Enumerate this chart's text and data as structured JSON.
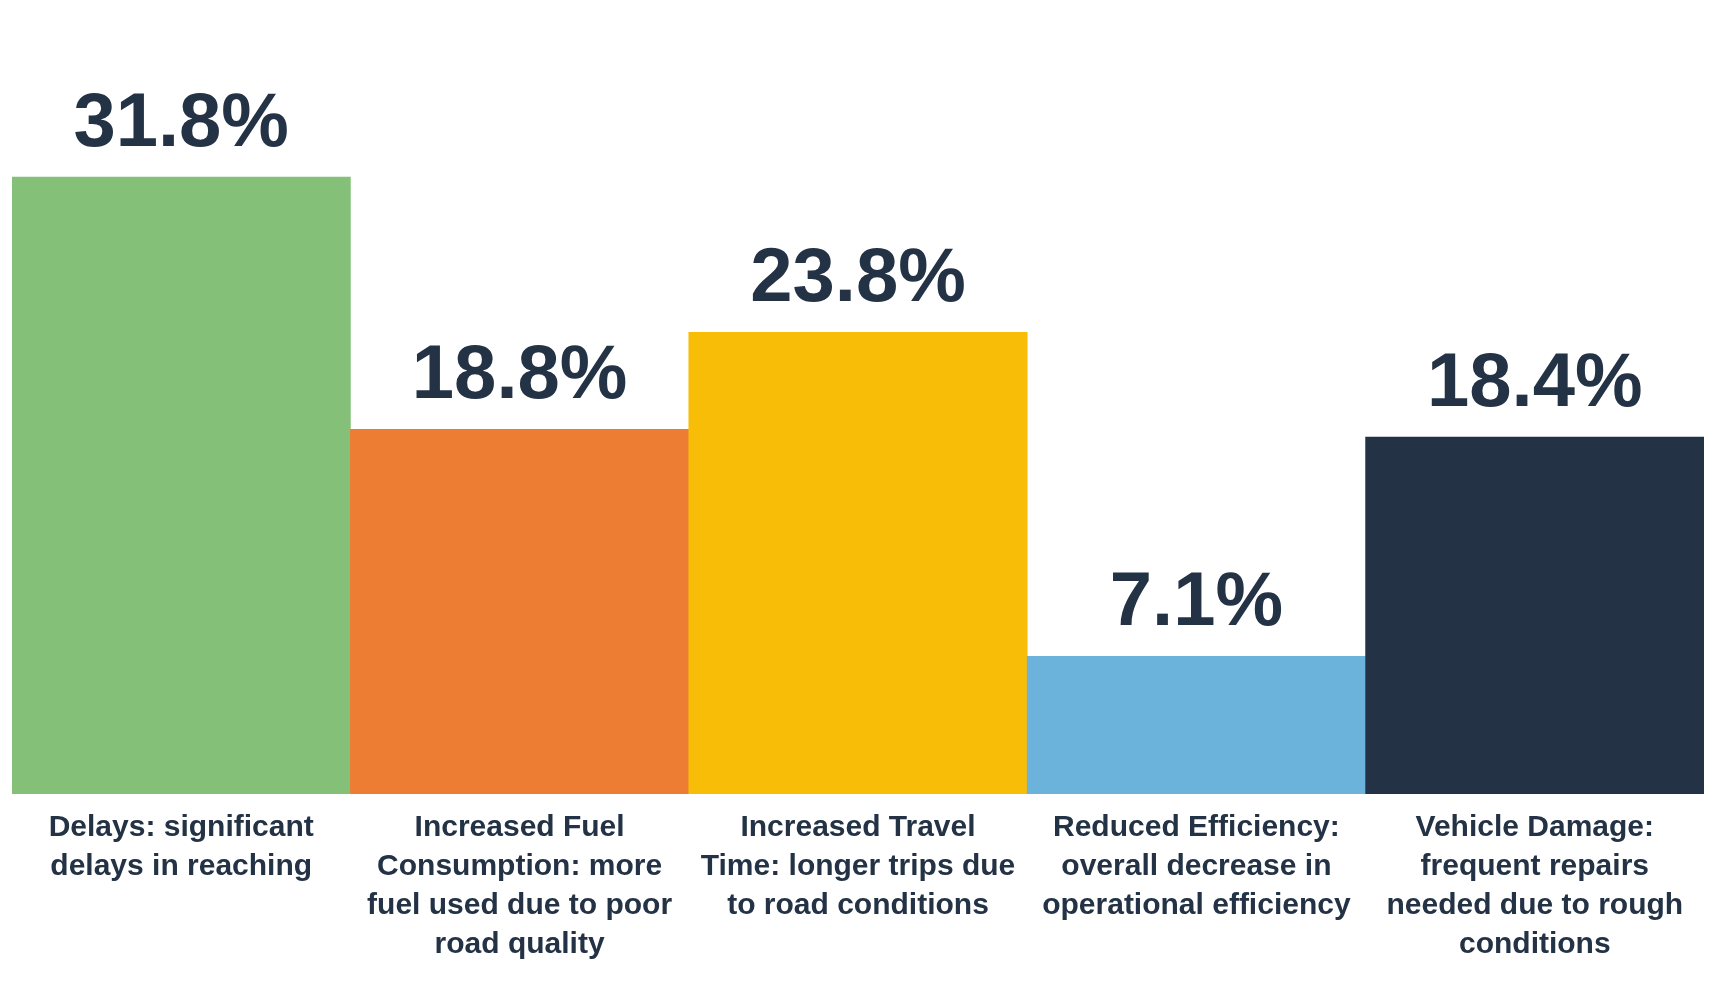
{
  "chart_data": {
    "type": "bar",
    "categories": [
      "Delays: significant delays in reaching",
      "Increased Fuel Consumption: more fuel used due to poor road quality",
      "Increased Travel Time: longer trips due to road conditions",
      "Reduced Efficiency: overall decrease in operational efficiency",
      "Vehicle Damage: frequent repairs needed due to rough conditions"
    ],
    "values": [
      31.8,
      18.8,
      23.8,
      7.1,
      18.4
    ],
    "colors": [
      "#84c077",
      "#ec7d33",
      "#f8bd07",
      "#6cb3dc",
      "#233345"
    ],
    "value_labels": [
      "31.8%",
      "18.8%",
      "23.8%",
      "7.1%",
      "18.4%"
    ],
    "grid": false,
    "legend": false
  }
}
